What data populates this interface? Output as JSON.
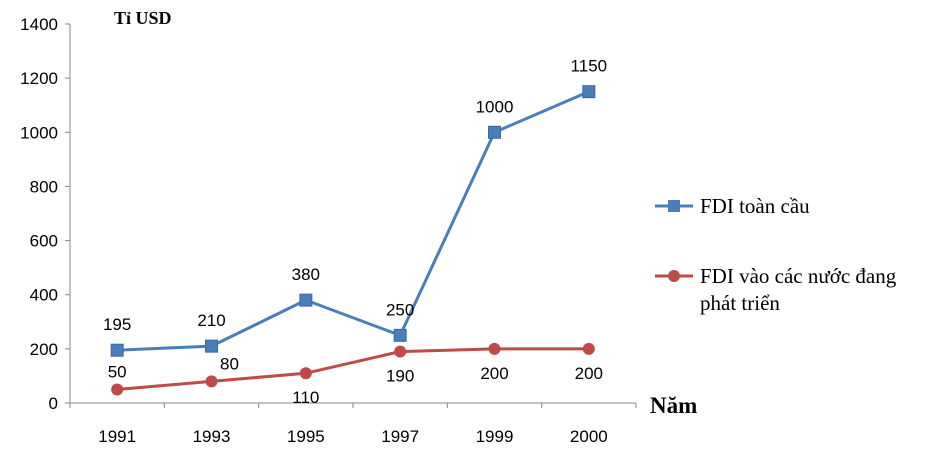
{
  "chart_data": {
    "type": "line",
    "ylabel": "Tỉ USD",
    "xlabel": "Năm",
    "categories": [
      "1991",
      "1993",
      "1995",
      "1997",
      "1999",
      "2000"
    ],
    "ylim": [
      0,
      1400
    ],
    "yticks": [
      "0",
      "200",
      "400",
      "600",
      "800",
      "1000",
      "1200",
      "1400"
    ],
    "grid": false,
    "legend_position": "right",
    "series": [
      {
        "name": "FDI toàn cầu",
        "values": [
          195,
          210,
          380,
          250,
          1000,
          1150
        ],
        "labels": [
          "195",
          "210",
          "380",
          "250",
          "1000",
          "1150"
        ],
        "color": "#4a7ebb",
        "marker": "square"
      },
      {
        "name": "FDI vào các nước đang phát triển",
        "name_lines": [
          "FDI vào các nước đang",
          "phát triển"
        ],
        "values": [
          50,
          80,
          110,
          190,
          200,
          200
        ],
        "labels": [
          "50",
          "80",
          "110",
          "190",
          "200",
          "200"
        ],
        "color": "#be4b48",
        "marker": "circle"
      }
    ]
  }
}
